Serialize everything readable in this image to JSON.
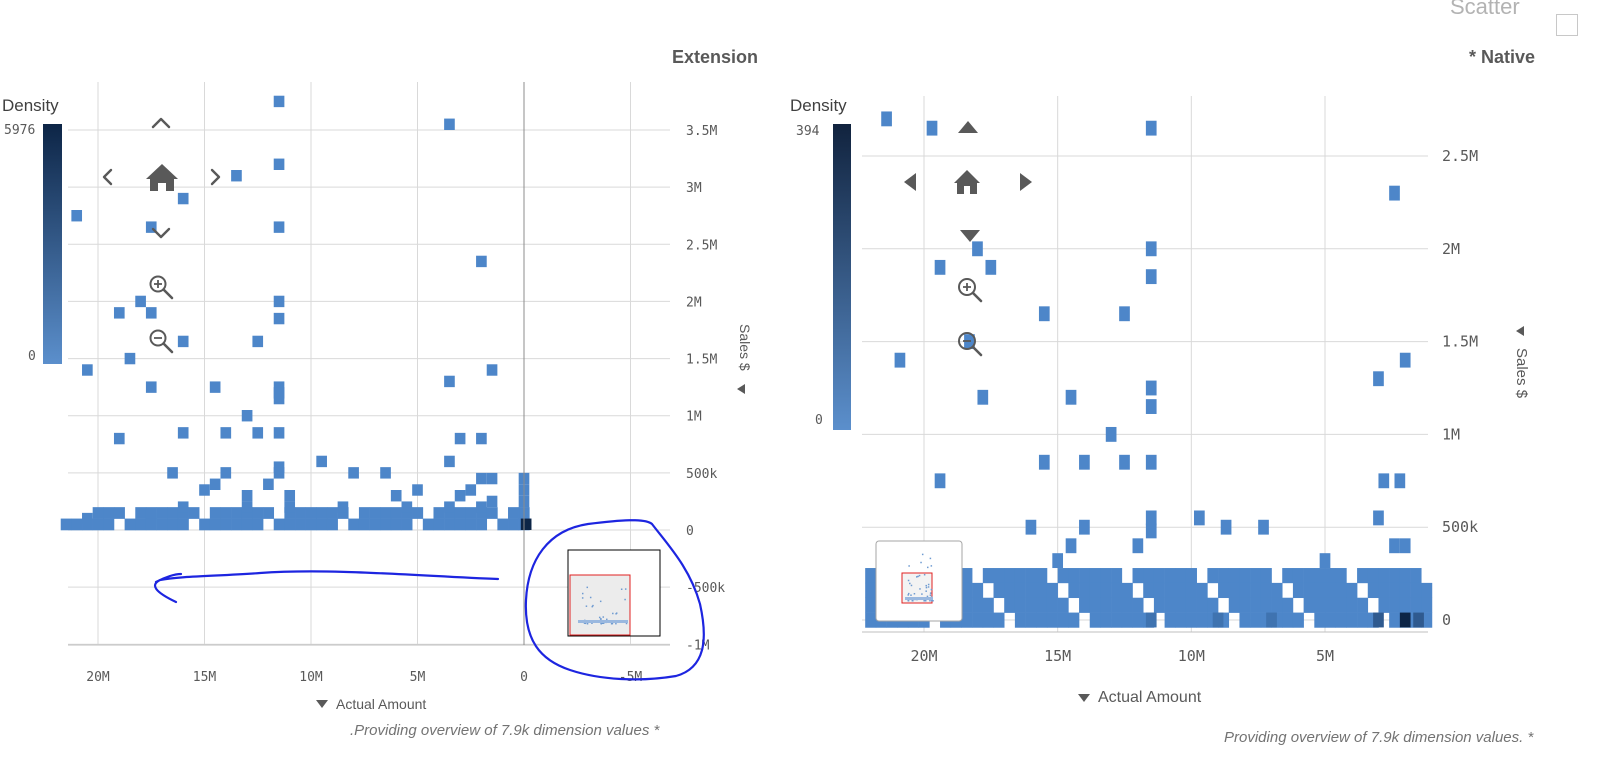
{
  "page": {
    "scatter_title": "Scatter",
    "footnote_left": ".Providing overview of 7.9k dimension values *",
    "footnote_right": "Providing overview of 7.9k dimension values. *"
  },
  "colors": {
    "cell": "#4d86c9",
    "cell_dark": "#0d2546",
    "grid": "#d9d9d9",
    "annotation": "#1d25e0",
    "minimap_box": "#e02020"
  },
  "icons": [
    "home-icon",
    "zoom-in-icon",
    "zoom-out-icon",
    "chevron-up-icon",
    "chevron-down-icon",
    "chevron-left-icon",
    "chevron-right-icon",
    "triangle-up-icon",
    "triangle-down-icon",
    "triangle-left-icon",
    "triangle-right-icon",
    "sort-arrow-icon"
  ],
  "left": {
    "title": "Extension",
    "density_label": "Density",
    "density_max": "5976",
    "density_min": "0",
    "y_label": "Sales $",
    "x_label": "Actual Amount"
  },
  "right": {
    "title": "* Native",
    "density_label": "Density",
    "density_max": "394",
    "density_min": "0",
    "y_label": "Sales $",
    "x_label": "Actual Amount"
  },
  "chart_data": [
    {
      "type": "heatmap",
      "title": "Extension",
      "xlabel": "Actual Amount",
      "ylabel": "Sales $",
      "x_ticks": [
        "20M",
        "15M",
        "10M",
        "5M",
        "0",
        "-5M"
      ],
      "x_tick_values": [
        20000000,
        15000000,
        10000000,
        5000000,
        0,
        -5000000
      ],
      "y_ticks": [
        "3.5M",
        "3M",
        "2.5M",
        "2M",
        "1.5M",
        "1M",
        "500k",
        "0",
        "-500k",
        "-1M"
      ],
      "y_tick_values": [
        3500000,
        3000000,
        2500000,
        2000000,
        1500000,
        1000000,
        500000,
        0,
        -500000,
        -1000000
      ],
      "xlim": [
        21500000,
        -7000000
      ],
      "ylim": [
        -1000000,
        3800000
      ],
      "x_reversed": true,
      "grid": true,
      "legend": "color scale top-left, Density 0 to 5976",
      "density_range": [
        0,
        5976
      ],
      "cell_width": 500000,
      "cell_height": 100000,
      "points": [
        [
          11500000,
          3750000
        ],
        [
          3500000,
          3550000
        ],
        [
          11500000,
          3200000
        ],
        [
          13500000,
          3100000
        ],
        [
          16000000,
          2900000
        ],
        [
          21000000,
          2750000
        ],
        [
          17500000,
          2650000
        ],
        [
          11500000,
          2650000
        ],
        [
          2000000,
          2350000
        ],
        [
          18000000,
          2000000
        ],
        [
          11500000,
          2000000
        ],
        [
          19000000,
          1900000
        ],
        [
          17500000,
          1900000
        ],
        [
          11500000,
          1850000
        ],
        [
          16000000,
          1650000
        ],
        [
          12500000,
          1650000
        ],
        [
          18500000,
          1500000
        ],
        [
          20500000,
          1400000
        ],
        [
          1500000,
          1400000
        ],
        [
          3500000,
          1300000
        ],
        [
          17500000,
          1250000
        ],
        [
          14500000,
          1250000
        ],
        [
          11500000,
          1250000
        ],
        [
          11500000,
          1200000
        ],
        [
          11500000,
          1150000
        ],
        [
          13000000,
          1000000
        ],
        [
          16000000,
          850000
        ],
        [
          14000000,
          850000
        ],
        [
          12500000,
          850000
        ],
        [
          11500000,
          850000
        ],
        [
          19000000,
          800000
        ],
        [
          3000000,
          800000
        ],
        [
          2000000,
          800000
        ],
        [
          9500000,
          600000
        ],
        [
          3500000,
          600000
        ],
        [
          11500000,
          550000
        ],
        [
          16500000,
          500000
        ],
        [
          14000000,
          500000
        ],
        [
          8000000,
          500000
        ],
        [
          6500000,
          500000
        ],
        [
          11500000,
          500000
        ],
        [
          14500000,
          400000
        ],
        [
          12000000,
          400000
        ],
        [
          2000000,
          450000
        ],
        [
          1500000,
          450000
        ],
        [
          0,
          450000
        ],
        [
          15000000,
          350000
        ],
        [
          5000000,
          350000
        ],
        [
          2500000,
          350000
        ],
        [
          0,
          350000
        ],
        [
          11000000,
          300000
        ],
        [
          6000000,
          300000
        ],
        [
          3000000,
          300000
        ],
        [
          13000000,
          300000
        ],
        [
          1500000,
          250000
        ],
        [
          0,
          250000
        ],
        [
          16000000,
          200000
        ],
        [
          13000000,
          200000
        ],
        [
          11000000,
          200000
        ],
        [
          8500000,
          200000
        ],
        [
          5500000,
          200000
        ],
        [
          3500000,
          200000
        ],
        [
          2000000,
          200000
        ],
        [
          20500000,
          100000
        ],
        [
          17500000,
          100000
        ],
        [
          0,
          150000
        ],
        [
          -100000,
          50000
        ]
      ],
      "dense_band_rows": [
        {
          "y": 50000,
          "from": 21500000,
          "to": 0
        },
        {
          "y": 150000,
          "from": 20000000,
          "to": 0
        }
      ]
    },
    {
      "type": "heatmap",
      "title": "* Native",
      "xlabel": "Actual Amount",
      "ylabel": "Sales $",
      "x_ticks": [
        "20M",
        "15M",
        "10M",
        "5M"
      ],
      "x_tick_values": [
        20000000,
        15000000,
        10000000,
        5000000
      ],
      "y_ticks": [
        "2.5M",
        "2M",
        "1.5M",
        "1M",
        "500k",
        "0"
      ],
      "y_tick_values": [
        2500000,
        2000000,
        1500000,
        1000000,
        500000,
        0
      ],
      "xlim": [
        22000000,
        1000000
      ],
      "ylim": [
        -50000,
        2800000
      ],
      "x_reversed": true,
      "grid": true,
      "legend": "color scale top-left, Density 0 to 394",
      "density_range": [
        0,
        394
      ],
      "cell_width": 400000,
      "cell_height": 80000,
      "points": [
        [
          21400000,
          2700000
        ],
        [
          19700000,
          2650000
        ],
        [
          11500000,
          2650000
        ],
        [
          2400000,
          2300000
        ],
        [
          18000000,
          2000000
        ],
        [
          11500000,
          2000000
        ],
        [
          19400000,
          1900000
        ],
        [
          17500000,
          1900000
        ],
        [
          11500000,
          1850000
        ],
        [
          15500000,
          1650000
        ],
        [
          12500000,
          1650000
        ],
        [
          20900000,
          1400000
        ],
        [
          18300000,
          1500000
        ],
        [
          2000000,
          1400000
        ],
        [
          3000000,
          1300000
        ],
        [
          17800000,
          1200000
        ],
        [
          14500000,
          1200000
        ],
        [
          11500000,
          1250000
        ],
        [
          11500000,
          1150000
        ],
        [
          13000000,
          1000000
        ],
        [
          15500000,
          850000
        ],
        [
          14000000,
          850000
        ],
        [
          12500000,
          850000
        ],
        [
          11500000,
          850000
        ],
        [
          19400000,
          750000
        ],
        [
          2800000,
          750000
        ],
        [
          2200000,
          750000
        ],
        [
          11500000,
          550000
        ],
        [
          9700000,
          550000
        ],
        [
          3000000,
          550000
        ],
        [
          16000000,
          500000
        ],
        [
          14000000,
          500000
        ],
        [
          8700000,
          500000
        ],
        [
          7300000,
          500000
        ],
        [
          11500000,
          480000
        ],
        [
          14500000,
          400000
        ],
        [
          12000000,
          400000
        ],
        [
          2400000,
          400000
        ],
        [
          2000000,
          400000
        ],
        [
          15000000,
          320000
        ],
        [
          5000000,
          320000
        ]
      ],
      "dense_band_rows": [
        {
          "y": 240000,
          "from": 22000000,
          "to": 1200000
        },
        {
          "y": 160000,
          "from": 22000000,
          "to": 1200000
        },
        {
          "y": 80000,
          "from": 22000000,
          "to": 1200000
        },
        {
          "y": 0,
          "from": 22000000,
          "to": 1200000
        }
      ]
    }
  ]
}
